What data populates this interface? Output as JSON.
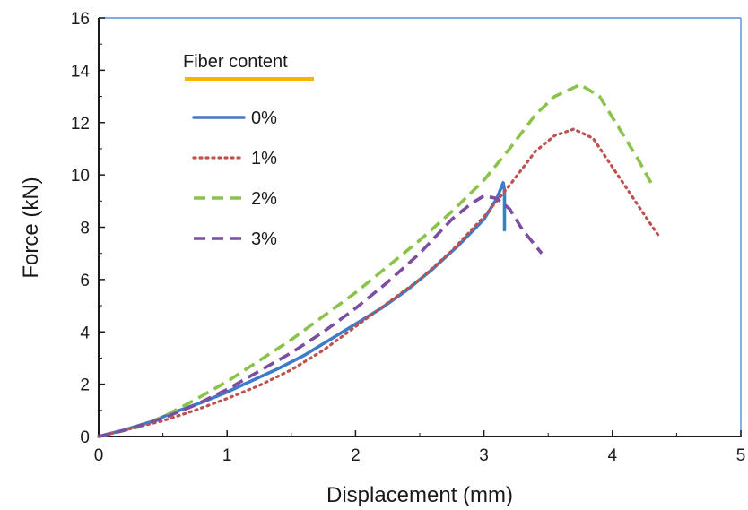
{
  "chart_data": {
    "type": "line",
    "title": "",
    "xlabel": "Displacement (mm)",
    "ylabel": "Force (kN)",
    "xlim": [
      0,
      5
    ],
    "ylim": [
      0,
      16
    ],
    "xticks": [
      "0",
      "1",
      "2",
      "3",
      "4",
      "5"
    ],
    "yticks": [
      "0",
      "2",
      "4",
      "6",
      "8",
      "10",
      "12",
      "14",
      "16"
    ],
    "grid": false,
    "legend": {
      "title": "Fiber content",
      "title_underline_color": "#f5b400",
      "placement": "top-left"
    },
    "series": [
      {
        "name": "0%",
        "color": "#3d7cc9",
        "style": "solid",
        "x": [
          0,
          0.2,
          0.4,
          0.6,
          0.8,
          1.0,
          1.2,
          1.4,
          1.6,
          1.8,
          2.0,
          2.2,
          2.4,
          2.6,
          2.8,
          3.0,
          3.1,
          3.15,
          3.16,
          3.16
        ],
        "y": [
          0,
          0.25,
          0.55,
          0.95,
          1.3,
          1.7,
          2.15,
          2.6,
          3.1,
          3.7,
          4.3,
          4.9,
          5.6,
          6.4,
          7.3,
          8.3,
          9.1,
          9.7,
          9.4,
          7.9
        ]
      },
      {
        "name": "1%",
        "color": "#c0504d",
        "style": "dotted",
        "x": [
          0,
          0.25,
          0.5,
          0.75,
          1.0,
          1.25,
          1.5,
          1.75,
          2.0,
          2.25,
          2.5,
          2.75,
          3.0,
          3.2,
          3.4,
          3.55,
          3.7,
          3.85,
          4.0,
          4.15,
          4.3,
          4.37
        ],
        "y": [
          0,
          0.3,
          0.6,
          1.0,
          1.45,
          1.95,
          2.55,
          3.3,
          4.2,
          5.1,
          6.0,
          7.1,
          8.4,
          9.6,
          10.9,
          11.5,
          11.75,
          11.4,
          10.3,
          9.2,
          8.1,
          7.6
        ]
      },
      {
        "name": "2%",
        "color": "#8bc34a",
        "style": "dashed",
        "x": [
          0,
          0.3,
          0.5,
          0.75,
          1.0,
          1.25,
          1.5,
          1.75,
          2.0,
          2.25,
          2.5,
          2.75,
          3.0,
          3.2,
          3.4,
          3.55,
          3.75,
          3.9,
          4.05,
          4.2,
          4.3
        ],
        "y": [
          0,
          0.35,
          0.75,
          1.4,
          2.1,
          2.9,
          3.7,
          4.6,
          5.5,
          6.5,
          7.5,
          8.6,
          9.8,
          11.0,
          12.3,
          13.0,
          13.45,
          13.0,
          11.8,
          10.6,
          9.7
        ]
      },
      {
        "name": "3%",
        "color": "#7b4fa0",
        "style": "dashed",
        "x": [
          0,
          0.25,
          0.5,
          0.75,
          1.0,
          1.25,
          1.5,
          1.75,
          2.0,
          2.25,
          2.5,
          2.75,
          2.9,
          3.0,
          3.1,
          3.2,
          3.3,
          3.45
        ],
        "y": [
          0,
          0.3,
          0.7,
          1.2,
          1.8,
          2.5,
          3.2,
          4.0,
          4.9,
          5.9,
          7.0,
          8.3,
          8.9,
          9.2,
          9.1,
          8.7,
          7.9,
          7.0
        ]
      }
    ]
  }
}
